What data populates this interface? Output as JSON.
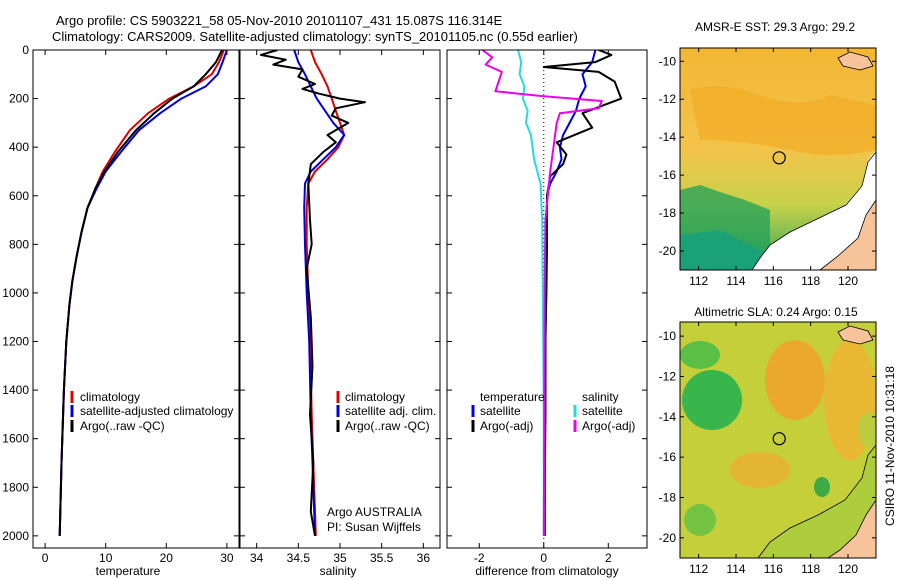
{
  "header": {
    "line1": "Argo profile: CS 5903221_58 05-Nov-2010 20101107_431 15.087S 116.314E",
    "line2": "Climatology: CARS2009. Satellite-adjusted climatology: synTS_20101105.nc (0.55d earlier)"
  },
  "credit": "CSIRO 11-Nov-2010 10:31:18",
  "colors": {
    "red": "#dd0000",
    "blue": "#0000dd",
    "black": "#000000",
    "cyan": "#22dddd",
    "magenta": "#ee00ee"
  },
  "chart_data": [
    {
      "type": "line",
      "name": "temperature-profile",
      "xlabel": "temperature",
      "ylabel": "",
      "xlim": [
        -2,
        32
      ],
      "ylim": [
        2050,
        0
      ],
      "xticks": [
        0,
        10,
        20,
        30
      ],
      "xtick_labels": [
        "0",
        "10",
        "20",
        "30"
      ],
      "yticks": [
        0,
        200,
        400,
        600,
        800,
        1000,
        1200,
        1400,
        1600,
        1800,
        2000
      ],
      "ytick_labels": [
        "0",
        "200",
        "400",
        "600",
        "800",
        "1000",
        "1200",
        "1400",
        "1600",
        "1800",
        "2000"
      ],
      "legend": [
        "climatology",
        "satellite-adjusted climatology",
        "Argo(..raw -QC)"
      ],
      "series": [
        {
          "name": "climatology",
          "color": "red",
          "x": [
            29.5,
            28.7,
            27.5,
            24.5,
            20.5,
            17.0,
            14.0,
            11.5,
            9.5,
            8.3,
            7.0,
            6.0,
            5.2,
            4.5,
            4.0,
            3.5,
            3.1,
            2.9,
            2.7,
            2.6,
            2.5,
            2.4
          ],
          "y": [
            0,
            50,
            100,
            150,
            200,
            260,
            330,
            420,
            500,
            570,
            650,
            750,
            850,
            950,
            1050,
            1200,
            1400,
            1550,
            1700,
            1800,
            1900,
            2000
          ]
        },
        {
          "name": "satellite-adjusted climatology",
          "color": "blue",
          "x": [
            30.0,
            29.3,
            28.5,
            26.5,
            22.5,
            19.0,
            15.5,
            12.5,
            10.0,
            8.5,
            7.0,
            6.0,
            5.2,
            4.5,
            4.0,
            3.5,
            3.1,
            2.9,
            2.7,
            2.6,
            2.5,
            2.4
          ],
          "y": [
            0,
            50,
            100,
            150,
            200,
            260,
            330,
            420,
            500,
            570,
            650,
            750,
            850,
            950,
            1050,
            1200,
            1400,
            1550,
            1700,
            1800,
            1900,
            2000
          ]
        },
        {
          "name": "Argo",
          "color": "black",
          "x": [
            29.2,
            28.2,
            26.5,
            24.5,
            21.0,
            18.0,
            15.0,
            12.0,
            9.8,
            8.3,
            7.0,
            6.0,
            5.2,
            4.5,
            4.0,
            3.5,
            3.1,
            2.9,
            2.7,
            2.6,
            2.5,
            2.4
          ],
          "y": [
            0,
            50,
            100,
            150,
            200,
            260,
            330,
            420,
            500,
            570,
            650,
            750,
            850,
            950,
            1050,
            1200,
            1400,
            1550,
            1700,
            1800,
            1900,
            2000
          ]
        }
      ]
    },
    {
      "type": "line",
      "name": "salinity-profile",
      "xlabel": "salinity",
      "ylabel": "",
      "xlim": [
        33.8,
        36.2
      ],
      "ylim": [
        2050,
        0
      ],
      "xticks": [
        34,
        34.5,
        35,
        35.5,
        36
      ],
      "xtick_labels": [
        "34",
        "34.5",
        "35",
        "35.5",
        "36"
      ],
      "legend": [
        "climatology",
        "satellite adj. clim.",
        "Argo(..raw -QC)"
      ],
      "annotation": [
        "Argo AUSTRALIA",
        "PI: Susan Wijffels"
      ],
      "series": [
        {
          "name": "climatology",
          "color": "red",
          "x": [
            34.65,
            34.7,
            34.78,
            34.85,
            34.9,
            34.95,
            35.0,
            35.05,
            34.98,
            34.85,
            34.7,
            34.62,
            34.6,
            34.6,
            34.62,
            34.64,
            34.66,
            34.68,
            34.7,
            34.71
          ],
          "y": [
            0,
            50,
            100,
            150,
            200,
            250,
            300,
            350,
            400,
            450,
            500,
            550,
            650,
            800,
            1000,
            1200,
            1500,
            1700,
            1900,
            2000
          ]
        },
        {
          "name": "satellite adj. clim.",
          "color": "blue",
          "x": [
            34.45,
            34.5,
            34.58,
            34.65,
            34.72,
            34.82,
            34.92,
            35.05,
            34.95,
            34.8,
            34.65,
            34.58,
            34.57,
            34.58,
            34.6,
            34.63,
            34.65,
            34.67,
            34.69,
            34.7
          ],
          "y": [
            0,
            50,
            100,
            150,
            200,
            250,
            300,
            350,
            400,
            450,
            500,
            550,
            650,
            800,
            1000,
            1200,
            1500,
            1700,
            1900,
            2000
          ]
        },
        {
          "name": "Argo",
          "color": "black",
          "x": [
            34.25,
            34.05,
            34.35,
            34.2,
            34.55,
            34.5,
            34.7,
            34.55,
            34.75,
            35.0,
            35.3,
            34.95,
            34.9,
            35.1,
            34.85,
            34.95,
            34.8,
            34.65,
            34.62,
            34.64,
            34.66,
            34.6,
            34.65,
            34.67,
            34.64,
            34.68,
            34.65,
            34.7
          ],
          "y": [
            0,
            20,
            40,
            60,
            80,
            110,
            140,
            160,
            180,
            200,
            215,
            240,
            270,
            300,
            350,
            380,
            420,
            470,
            550,
            700,
            800,
            900,
            1100,
            1300,
            1500,
            1700,
            1900,
            2000
          ]
        }
      ]
    },
    {
      "type": "line",
      "name": "difference-profile",
      "xlabel": "difference from climatology",
      "ylabel": "",
      "xlim": [
        -3,
        3.2
      ],
      "ylim": [
        2050,
        0
      ],
      "xticks": [
        -2,
        0,
        2
      ],
      "xtick_labels": [
        "-2",
        "0",
        "2"
      ],
      "legend_headers": [
        "temperature",
        "salinity"
      ],
      "legend": [
        "satellite",
        "Argo(-adj)",
        "satellite",
        "Argo(-adj)"
      ],
      "series": [
        {
          "name": "temperature satellite",
          "color": "blue",
          "x": [
            1.6,
            1.5,
            1.2,
            1.3,
            1.1,
            1.0,
            0.8,
            0.6,
            0.5,
            0.55,
            0.4,
            0.2,
            0.1,
            0.08,
            0.05,
            0.05,
            0.03,
            0.03
          ],
          "y": [
            0,
            50,
            100,
            150,
            200,
            250,
            300,
            350,
            400,
            450,
            500,
            550,
            600,
            800,
            1000,
            1400,
            1800,
            2000
          ]
        },
        {
          "name": "temperature Argo(-adj)",
          "color": "black",
          "x": [
            1.7,
            2.1,
            1.6,
            0.0,
            1.7,
            2.2,
            2.4,
            1.2,
            1.5,
            0.4,
            0.7,
            0.6,
            0.2,
            0.1,
            0.1,
            0.08,
            0.05,
            0.05,
            0.03,
            0.03
          ],
          "y": [
            0,
            20,
            50,
            70,
            90,
            130,
            200,
            260,
            320,
            380,
            430,
            470,
            520,
            600,
            800,
            1000,
            1200,
            1500,
            1800,
            2000
          ]
        },
        {
          "name": "salinity satellite",
          "color": "cyan",
          "x": [
            -0.8,
            -0.7,
            -0.75,
            -0.6,
            -0.65,
            -0.5,
            -0.55,
            -0.4,
            -0.35,
            -0.3,
            -0.2,
            -0.1,
            -0.05,
            -0.03,
            0.0,
            0.0
          ],
          "y": [
            0,
            50,
            100,
            150,
            200,
            250,
            300,
            350,
            400,
            450,
            500,
            550,
            700,
            1000,
            1500,
            2000
          ]
        },
        {
          "name": "salinity Argo(-adj)",
          "color": "magenta",
          "x": [
            -1.9,
            -1.6,
            -1.8,
            -1.3,
            -1.4,
            -1.5,
            0.0,
            1.8,
            1.7,
            0.5,
            0.4,
            0.3,
            0.2,
            0.05,
            0.03,
            0.02,
            0.01,
            0.0
          ],
          "y": [
            0,
            30,
            60,
            90,
            130,
            170,
            190,
            210,
            240,
            260,
            300,
            400,
            500,
            700,
            1000,
            1300,
            1700,
            2000
          ]
        }
      ]
    },
    {
      "type": "heatmap",
      "name": "sst-map",
      "title": "AMSR-E SST: 29.3 Argo: 29.2",
      "xlim": [
        111,
        121.5
      ],
      "ylim": [
        -21,
        -9.3
      ],
      "xticks": [
        112,
        114,
        116,
        118,
        120
      ],
      "xtick_labels": [
        "112",
        "114",
        "116",
        "118",
        "120"
      ],
      "yticks": [
        -10,
        -12,
        -14,
        -16,
        -18,
        -20
      ],
      "ytick_labels": [
        "-10",
        "-12",
        "-14",
        "-16",
        "-18",
        "-20"
      ],
      "argo_position": [
        116.314,
        -15.087
      ]
    },
    {
      "type": "heatmap",
      "name": "sla-map",
      "title": "Altimetric SLA: 0.24 Argo: 0.15",
      "xlim": [
        111,
        121.5
      ],
      "ylim": [
        -21,
        -9.3
      ],
      "xticks": [
        112,
        114,
        116,
        118,
        120
      ],
      "xtick_labels": [
        "112",
        "114",
        "116",
        "118",
        "120"
      ],
      "yticks": [
        -10,
        -12,
        -14,
        -16,
        -18,
        -20
      ],
      "ytick_labels": [
        "-10",
        "-12",
        "-14",
        "-16",
        "-18",
        "-20"
      ],
      "argo_position": [
        116.314,
        -15.087
      ]
    }
  ]
}
